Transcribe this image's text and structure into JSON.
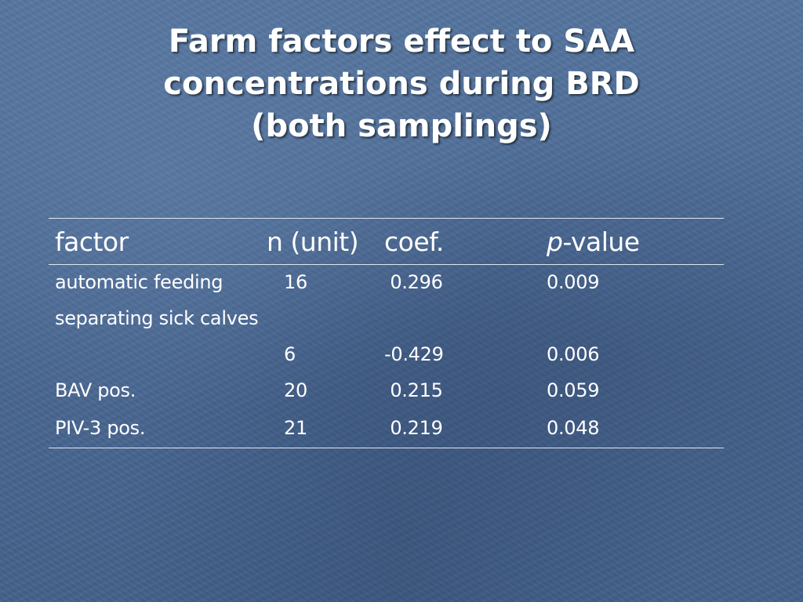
{
  "slide": {
    "title_lines": [
      "Farm factors effect to SAA",
      "concentrations during BRD",
      "(both samplings)"
    ]
  },
  "table": {
    "headers": {
      "factor": "factor",
      "n": "n (unit)",
      "coef": "coef.",
      "p_italic": "p",
      "p_rest": "-value"
    },
    "rows": [
      {
        "factor": "automatic feeding",
        "n": "16",
        "coef": " 0.296",
        "p": "0.009"
      },
      {
        "factor": "separating sick calves",
        "n": "6",
        "coef": "-0.429",
        "p": "0.006"
      },
      {
        "factor": "BAV pos.",
        "n": "20",
        "coef": " 0.215",
        "p": "0.059"
      },
      {
        "factor": "PIV-3 pos.",
        "n": "21",
        "coef": " 0.219",
        "p": "0.048"
      }
    ]
  },
  "colors": {
    "background": "#4d6c96",
    "text": "#ffffff",
    "rule": "#dfe6ef"
  }
}
